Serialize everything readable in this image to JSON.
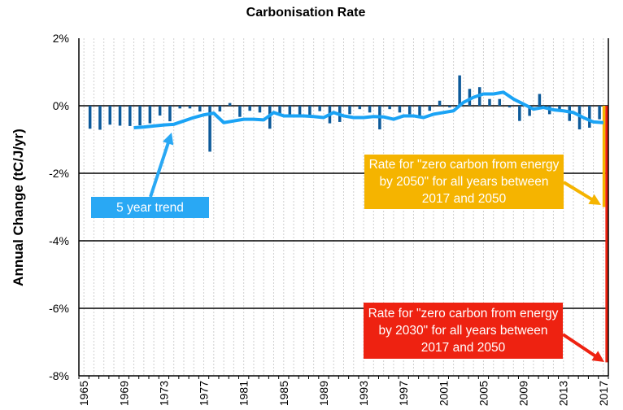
{
  "chart_data": {
    "type": "bar",
    "title": "Carbonisation Rate",
    "ylabel": "Annual Change (tC/J/yr)",
    "xlabel": "",
    "ylim": [
      -8,
      2
    ],
    "yticks": [
      2,
      0,
      -2,
      -4,
      -6,
      -8
    ],
    "ytick_labels": [
      "2%",
      "0%",
      "-2%",
      "-4%",
      "-6%",
      "-8%"
    ],
    "xticks": [
      "1965",
      "1969",
      "1973",
      "1977",
      "1981",
      "1985",
      "1989",
      "1993",
      "1997",
      "2001",
      "2005",
      "2009",
      "2013",
      "2017"
    ],
    "years_start": 1965,
    "years_end": 2017,
    "grid": "horizontal solid, vertical dashed",
    "series": [
      {
        "type": "bar",
        "color": "#0d5a9a",
        "x": [
          1966,
          1967,
          1968,
          1969,
          1970,
          1971,
          1972,
          1973,
          1974,
          1975,
          1976,
          1977,
          1978,
          1979,
          1980,
          1981,
          1982,
          1983,
          1984,
          1985,
          1986,
          1987,
          1988,
          1989,
          1990,
          1991,
          1992,
          1993,
          1994,
          1995,
          1996,
          1997,
          1998,
          1999,
          2000,
          2001,
          2002,
          2003,
          2004,
          2005,
          2006,
          2007,
          2008,
          2009,
          2010,
          2011,
          2012,
          2013,
          2014,
          2015,
          2016,
          2017
        ],
        "values": [
          -0.68,
          -0.71,
          -0.56,
          -0.59,
          -0.6,
          -0.58,
          -0.52,
          -0.29,
          -0.46,
          -0.08,
          -0.08,
          -0.17,
          -1.36,
          -0.17,
          0.08,
          -0.33,
          -0.15,
          -0.2,
          -0.68,
          -0.28,
          -0.28,
          -0.28,
          -0.28,
          -0.16,
          -0.52,
          -0.48,
          -0.25,
          -0.1,
          -0.2,
          -0.7,
          -0.1,
          -0.2,
          -0.25,
          -0.3,
          -0.15,
          0.15,
          -0.05,
          0.9,
          0.5,
          0.55,
          0.2,
          0.2,
          -0.05,
          -0.45,
          -0.3,
          0.35,
          -0.25,
          -0.1,
          -0.45,
          -0.7,
          -0.65,
          -0.4
        ]
      },
      {
        "type": "line",
        "name": "5 year trend",
        "color": "#1aa3f5",
        "x": [
          1970,
          1971,
          1972,
          1973,
          1974,
          1975,
          1976,
          1977,
          1978,
          1979,
          1980,
          1981,
          1982,
          1983,
          1984,
          1985,
          1986,
          1987,
          1988,
          1989,
          1990,
          1991,
          1992,
          1993,
          1994,
          1995,
          1996,
          1997,
          1998,
          1999,
          2000,
          2001,
          2002,
          2003,
          2004,
          2005,
          2006,
          2007,
          2008,
          2009,
          2010,
          2011,
          2012,
          2013,
          2014,
          2015,
          2016,
          2017
        ],
        "values": [
          -0.65,
          -0.63,
          -0.6,
          -0.57,
          -0.55,
          -0.45,
          -0.35,
          -0.27,
          -0.22,
          -0.5,
          -0.45,
          -0.4,
          -0.4,
          -0.42,
          -0.2,
          -0.3,
          -0.3,
          -0.3,
          -0.32,
          -0.35,
          -0.2,
          -0.3,
          -0.35,
          -0.35,
          -0.32,
          -0.33,
          -0.4,
          -0.3,
          -0.3,
          -0.35,
          -0.25,
          -0.2,
          -0.15,
          0.1,
          0.25,
          0.35,
          0.35,
          0.4,
          0.2,
          0.05,
          -0.1,
          -0.05,
          -0.12,
          -0.15,
          -0.2,
          -0.35,
          -0.48,
          -0.5
        ]
      },
      {
        "type": "bar",
        "x": [
          2017
        ],
        "values": [
          -3.0
        ],
        "color": "#f5b400"
      },
      {
        "type": "bar",
        "x": [
          2017
        ],
        "values": [
          -7.6
        ],
        "color": "#ee2211"
      }
    ],
    "annotations": [
      {
        "text": "5 year trend",
        "color": "#29a8f4",
        "points_to": {
          "x": 1973,
          "y": -0.55
        }
      },
      {
        "text": "Rate for \"zero carbon from energy by 2050\" for all years between 2017 and 2050",
        "color": "#f5b400",
        "points_to": {
          "x": 2017,
          "y": -3.0
        }
      },
      {
        "text": "Rate for \"zero carbon from energy by 2030\" for all years between 2017 and 2050",
        "color": "#ee2211",
        "points_to": {
          "x": 2017,
          "y": -7.6
        }
      }
    ]
  }
}
